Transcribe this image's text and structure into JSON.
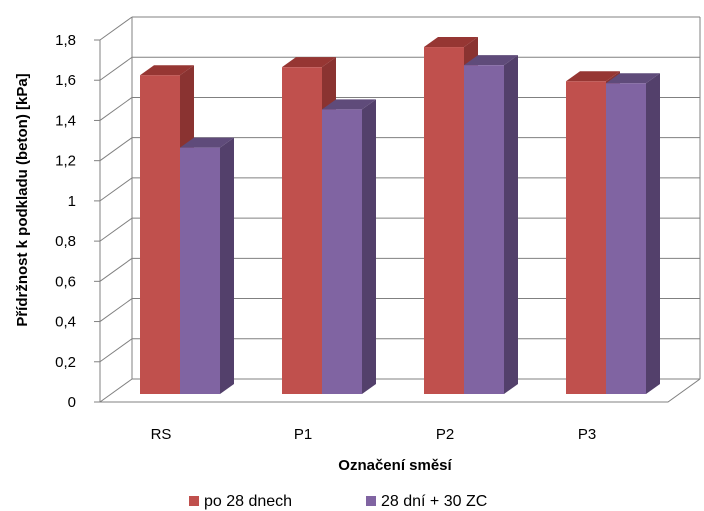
{
  "chart_data": {
    "type": "bar",
    "categories": [
      "RS",
      "P1",
      "P2",
      "P3"
    ],
    "series": [
      {
        "name": "po 28 dnech",
        "values": [
          1.61,
          1.65,
          1.75,
          1.58
        ],
        "color": "#c0504d",
        "top_color": "#963633",
        "side_color": "#8a3331"
      },
      {
        "name": "28 dní + 30 ZC",
        "values": [
          1.25,
          1.44,
          1.66,
          1.57
        ],
        "color": "#8064a2",
        "top_color": "#5f4b7a",
        "side_color": "#53406b"
      }
    ],
    "title": "",
    "xlabel": "Označení směsí",
    "ylabel": "Přídržnost k podkladu (beton) [kPa]",
    "ylim": [
      0,
      1.8
    ],
    "yticks": [
      0,
      0.2,
      0.4,
      0.6,
      0.8,
      1,
      1.2,
      1.4,
      1.6,
      1.8
    ],
    "ytick_labels": [
      "0",
      "0,2",
      "0,4",
      "0,6",
      "0,8",
      "1",
      "1,2",
      "1,4",
      "1,6",
      "1,8"
    ],
    "grid": true,
    "legend_position": "bottom",
    "style": "3d-clustered-column"
  }
}
